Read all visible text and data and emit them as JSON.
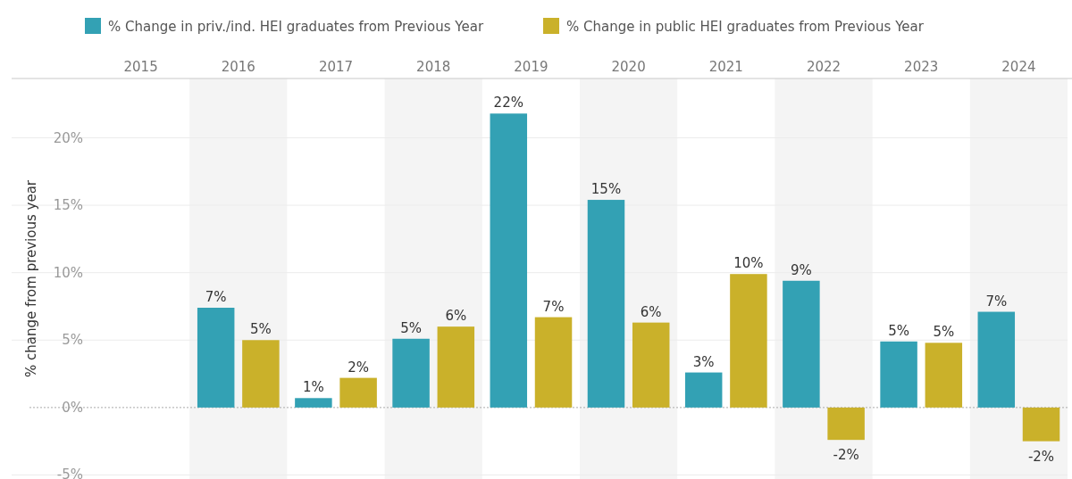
{
  "chart_data": {
    "type": "bar",
    "ylabel": "% change from previous year",
    "categories": [
      "2015",
      "2016",
      "2017",
      "2018",
      "2019",
      "2020",
      "2021",
      "2022",
      "2023",
      "2024"
    ],
    "series": [
      {
        "name": "% Change in priv./ind. HEI graduates from Previous Year",
        "color": "#33a1b4",
        "values": [
          null,
          7.4,
          0.7,
          5.1,
          21.8,
          15.4,
          2.6,
          9.4,
          4.9,
          7.1
        ],
        "value_labels": [
          null,
          "7%",
          "1%",
          "5%",
          "22%",
          "15%",
          "3%",
          "9%",
          "5%",
          "7%"
        ]
      },
      {
        "name": "% Change in public HEI graduates from Previous Year",
        "color": "#cab12a",
        "values": [
          null,
          5.0,
          2.2,
          6.0,
          6.7,
          6.3,
          9.9,
          -2.4,
          4.8,
          -2.5
        ],
        "value_labels": [
          null,
          "5%",
          "2%",
          "6%",
          "7%",
          "6%",
          "10%",
          "-2%",
          "5%",
          "-2%"
        ]
      }
    ],
    "ylim": [
      -5.3,
      24.4
    ],
    "yticks": [
      {
        "value": -5,
        "label": "-5%"
      },
      {
        "value": 0,
        "label": "0%"
      },
      {
        "value": 5,
        "label": "5%"
      },
      {
        "value": 10,
        "label": "10%"
      },
      {
        "value": 15,
        "label": "15%"
      },
      {
        "value": 20,
        "label": "20%"
      }
    ],
    "ref_lines": [
      {
        "axis": "y",
        "value": 0,
        "color": "#aaaaaa",
        "line_style": "dotted"
      }
    ],
    "grid": "y",
    "legend": "top left"
  }
}
